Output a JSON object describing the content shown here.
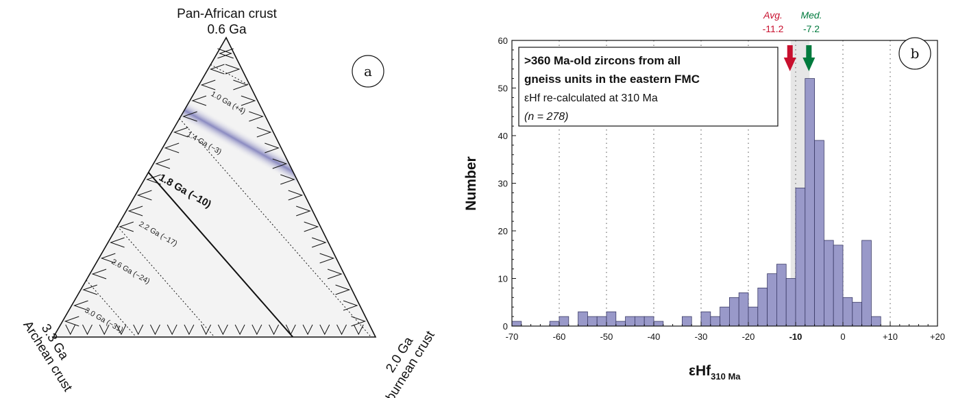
{
  "ternary": {
    "panel_label": "a",
    "top_vertex": {
      "name": "Pan-African crust",
      "age": "0.6 Ga"
    },
    "left_vertex": {
      "name": "Archean crust",
      "age": "3.3 Ga"
    },
    "right_vertex": {
      "name": "Eburnean crust",
      "age": "2.0 Ga"
    },
    "isochrons": [
      {
        "label": "1.0 Ga (+4)"
      },
      {
        "label": "1.4 Ga (−3)"
      },
      {
        "label": "1.8 Ga (−10)"
      },
      {
        "label": "2.2 Ga (−17)"
      },
      {
        "label": "2.6 Ga (−24)"
      },
      {
        "label": "3.0 Ga (−31)"
      }
    ]
  },
  "chart_data": {
    "type": "bar",
    "panel_label": "b",
    "xlabel": "εHf",
    "xlabel_subscript": "310 Ma",
    "ylabel": "Number",
    "xlim": [
      -70,
      20
    ],
    "ylim": [
      0,
      60
    ],
    "bin_width": 2,
    "x_ticks": [
      -70,
      -60,
      -50,
      -40,
      -30,
      -20,
      -10,
      0,
      10,
      20
    ],
    "x_tick_labels": [
      "-70",
      "-60",
      "-50",
      "-40",
      "-30",
      "-20",
      "-10",
      "0",
      "+10",
      "+20"
    ],
    "y_ticks": [
      0,
      10,
      20,
      30,
      40,
      50,
      60
    ],
    "y_tick_labels": [
      "0",
      "10",
      "20",
      "30",
      "40",
      "50",
      "60"
    ],
    "bins": [
      {
        "x0": -70,
        "count": 1
      },
      {
        "x0": -62,
        "count": 1
      },
      {
        "x0": -60,
        "count": 2
      },
      {
        "x0": -56,
        "count": 3
      },
      {
        "x0": -54,
        "count": 2
      },
      {
        "x0": -52,
        "count": 2
      },
      {
        "x0": -50,
        "count": 3
      },
      {
        "x0": -48,
        "count": 1
      },
      {
        "x0": -46,
        "count": 2
      },
      {
        "x0": -44,
        "count": 2
      },
      {
        "x0": -42,
        "count": 2
      },
      {
        "x0": -40,
        "count": 1
      },
      {
        "x0": -34,
        "count": 2
      },
      {
        "x0": -30,
        "count": 3
      },
      {
        "x0": -28,
        "count": 2
      },
      {
        "x0": -26,
        "count": 4
      },
      {
        "x0": -24,
        "count": 6
      },
      {
        "x0": -22,
        "count": 7
      },
      {
        "x0": -20,
        "count": 4
      },
      {
        "x0": -18,
        "count": 8
      },
      {
        "x0": -16,
        "count": 11
      },
      {
        "x0": -14,
        "count": 13
      },
      {
        "x0": -12,
        "count": 10
      },
      {
        "x0": -10,
        "count": 29
      },
      {
        "x0": -8,
        "count": 52
      },
      {
        "x0": -6,
        "count": 39
      },
      {
        "x0": -4,
        "count": 18
      },
      {
        "x0": -2,
        "count": 17
      },
      {
        "x0": 0,
        "count": 6
      },
      {
        "x0": 2,
        "count": 5
      },
      {
        "x0": 4,
        "count": 18
      },
      {
        "x0": 6,
        "count": 2
      }
    ],
    "stats": {
      "avg": {
        "label": "Avg.",
        "value_text": "-11.2",
        "value": -11.2,
        "color": "#c8102e"
      },
      "med": {
        "label": "Med.",
        "value_text": "-7.2",
        "value": -7.2,
        "color": "#007a3d"
      }
    },
    "annotation": {
      "line1": ">360 Ma-old zircons from all",
      "line2": "gneiss units in the eastern FMC",
      "line3": "εHf re-calculated at 310 Ma",
      "line4": "(n = 278)"
    },
    "colors": {
      "bar_fill": "#9999c9",
      "bar_stroke": "#3a3a66",
      "highlight_band": "#e6e6e6"
    }
  }
}
